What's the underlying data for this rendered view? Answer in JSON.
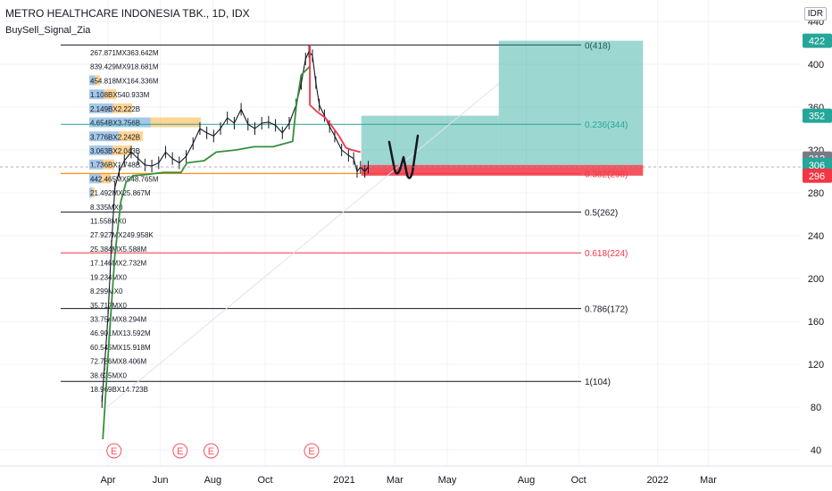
{
  "header": {
    "title": "METRO HEALTHCARE INDONESIA TBK., 1D, IDX",
    "indicator": "BuySell_Signal_Zia"
  },
  "unit_label": "IDR",
  "earnings_marker": "E",
  "chart_data": {
    "type": "line",
    "title": "METRO HEALTHCARE INDONESIA TBK., 1D, IDX",
    "xlabel": "",
    "ylabel": "",
    "ylim": [
      30,
      445
    ],
    "x_ticks": [
      {
        "label": "Apr",
        "date": "2020-04-01"
      },
      {
        "label": "Jun",
        "date": "2020-06-01"
      },
      {
        "label": "Aug",
        "date": "2020-08-01"
      },
      {
        "label": "Oct",
        "date": "2020-10-01"
      },
      {
        "label": "2021",
        "date": "2021-01-01"
      },
      {
        "label": "Mar",
        "date": "2021-03-01"
      },
      {
        "label": "May",
        "date": "2021-05-01"
      },
      {
        "label": "Aug",
        "date": "2021-08-01"
      },
      {
        "label": "Oct",
        "date": "2021-10-01"
      },
      {
        "label": "2022",
        "date": "2022-01-01"
      },
      {
        "label": "Mar",
        "date": "2022-03-01"
      }
    ],
    "y_ticks": [
      40,
      80,
      120,
      160,
      200,
      240,
      280,
      320,
      360,
      400,
      440
    ],
    "price_labels": [
      {
        "value": 422,
        "text": "422",
        "color": "#26a69a"
      },
      {
        "value": 352,
        "text": "352",
        "color": "#26a69a"
      },
      {
        "value": 312,
        "text": "312",
        "color": "#787b86"
      },
      {
        "value": 306,
        "text": "306",
        "color": "#26a69a"
      },
      {
        "value": 296,
        "text": "296",
        "color": "#f23645"
      }
    ],
    "fib_levels": [
      {
        "ratio": "0",
        "value": 418,
        "label": "0(418)",
        "color": "#131722"
      },
      {
        "ratio": "0.236",
        "value": 344,
        "label": "0.236(344)",
        "color": "#26a69a"
      },
      {
        "ratio": "0.382",
        "value": 298,
        "label": "0.382(298)",
        "color": "#f23645"
      },
      {
        "ratio": "0.5",
        "value": 262,
        "label": "0.5(262)",
        "color": "#131722"
      },
      {
        "ratio": "0.618",
        "value": 224,
        "label": "0.618(224)",
        "color": "#f23645"
      },
      {
        "ratio": "0.786",
        "value": 172,
        "label": "0.786(172)",
        "color": "#131722"
      },
      {
        "ratio": "1",
        "value": 104,
        "label": "1(104)",
        "color": "#131722"
      }
    ],
    "volume_profile_rows": [
      "267.871MX363.642M",
      "839.429MX918.681M",
      "454.818MX164.336M",
      "1.108BX540.933M",
      "2.149BX2.222B",
      "4.654BX3.756B",
      "3.776BX2.242B",
      "3.063BX2.043B",
      "1.736BX1.748B",
      "442.465MX548.765M",
      "21.492MX25.867M",
      "8.335MX0",
      "11.558MX0",
      "27.927MX249.958K",
      "25.384MX5.588M",
      "17.146MX2.732M",
      "19.234MX0",
      "8.299MX0",
      "35.717MX0",
      "33.754MX8.294M",
      "46.901MX13.592M",
      "60.545MX15.918M",
      "72.786MX8.406M",
      "38.635MX0",
      "18.969BX14.723B"
    ],
    "series": [
      {
        "name": "",
        "kind": "price",
        "color": "#131722",
        "points": [
          [
            "2020-03-25",
            85
          ],
          [
            "2020-03-28",
            120
          ],
          [
            "2020-04-01",
            165
          ],
          [
            "2020-04-05",
            230
          ],
          [
            "2020-04-09",
            285
          ],
          [
            "2020-04-14",
            300
          ],
          [
            "2020-04-20",
            310
          ],
          [
            "2020-04-28",
            318
          ],
          [
            "2020-05-06",
            312
          ],
          [
            "2020-05-14",
            306
          ],
          [
            "2020-05-22",
            305
          ],
          [
            "2020-05-30",
            308
          ],
          [
            "2020-06-07",
            318
          ],
          [
            "2020-06-15",
            312
          ],
          [
            "2020-06-23",
            308
          ],
          [
            "2020-07-01",
            314
          ],
          [
            "2020-07-09",
            326
          ],
          [
            "2020-07-17",
            340
          ],
          [
            "2020-07-25",
            336
          ],
          [
            "2020-08-02",
            333
          ],
          [
            "2020-08-10",
            340
          ],
          [
            "2020-08-18",
            350
          ],
          [
            "2020-08-26",
            345
          ],
          [
            "2020-09-03",
            358
          ],
          [
            "2020-09-11",
            344
          ],
          [
            "2020-09-19",
            340
          ],
          [
            "2020-09-27",
            345
          ],
          [
            "2020-10-05",
            346
          ],
          [
            "2020-10-13",
            343
          ],
          [
            "2020-10-21",
            336
          ],
          [
            "2020-10-29",
            345
          ],
          [
            "2020-11-06",
            362
          ],
          [
            "2020-11-12",
            382
          ],
          [
            "2020-11-17",
            405
          ],
          [
            "2020-11-21",
            412
          ],
          [
            "2020-11-25",
            408
          ],
          [
            "2020-11-29",
            383
          ],
          [
            "2020-12-03",
            362
          ],
          [
            "2020-12-09",
            352
          ],
          [
            "2020-12-15",
            342
          ],
          [
            "2020-12-21",
            333
          ],
          [
            "2020-12-29",
            320
          ],
          [
            "2021-01-06",
            315
          ],
          [
            "2021-01-12",
            312
          ],
          [
            "2021-01-16",
            300
          ],
          [
            "2021-01-20",
            304
          ],
          [
            "2021-01-25",
            300
          ],
          [
            "2021-01-29",
            304
          ]
        ]
      },
      {
        "name": "",
        "kind": "support",
        "color": "#388e3c",
        "points": [
          [
            "2020-03-26",
            50
          ],
          [
            "2020-04-02",
            140
          ],
          [
            "2020-04-09",
            222
          ],
          [
            "2020-04-16",
            272
          ],
          [
            "2020-04-22",
            290
          ],
          [
            "2020-04-30",
            296
          ],
          [
            "2020-05-15",
            297
          ],
          [
            "2020-06-05",
            299
          ],
          [
            "2020-06-25",
            299
          ],
          [
            "2020-07-02",
            308
          ],
          [
            "2020-07-22",
            310
          ],
          [
            "2020-08-05",
            318
          ],
          [
            "2020-08-28",
            320
          ],
          [
            "2020-09-18",
            323
          ],
          [
            "2020-10-10",
            323
          ],
          [
            "2020-11-02",
            328
          ],
          [
            "2020-11-06",
            360
          ],
          [
            "2020-11-12",
            390
          ],
          [
            "2020-11-22",
            398
          ]
        ]
      },
      {
        "name": "",
        "kind": "resistance",
        "color": "#f23645",
        "points": [
          [
            "2020-11-22",
            418
          ],
          [
            "2020-11-22",
            362
          ],
          [
            "2020-11-30",
            356
          ],
          [
            "2020-12-10",
            350
          ],
          [
            "2020-12-18",
            342
          ],
          [
            "2020-12-26",
            333
          ],
          [
            "2021-01-03",
            322
          ],
          [
            "2021-01-10",
            320
          ],
          [
            "2021-01-20",
            318
          ]
        ]
      }
    ],
    "earnings_dates": [
      "2020-04-08",
      "2020-06-24",
      "2020-07-30",
      "2020-11-24"
    ],
    "position_tool": [
      {
        "role": "target",
        "from": "2021-01-21",
        "to": "2021-06-30",
        "top": 352,
        "bottom": 306,
        "color": "#26a69a"
      },
      {
        "role": "target",
        "from": "2021-06-30",
        "to": "2021-12-15",
        "top": 422,
        "bottom": 306,
        "color": "#26a69a"
      },
      {
        "role": "stop",
        "from": "2021-01-21",
        "to": "2021-12-15",
        "top": 306,
        "bottom": 296,
        "color": "#f23645"
      }
    ]
  }
}
